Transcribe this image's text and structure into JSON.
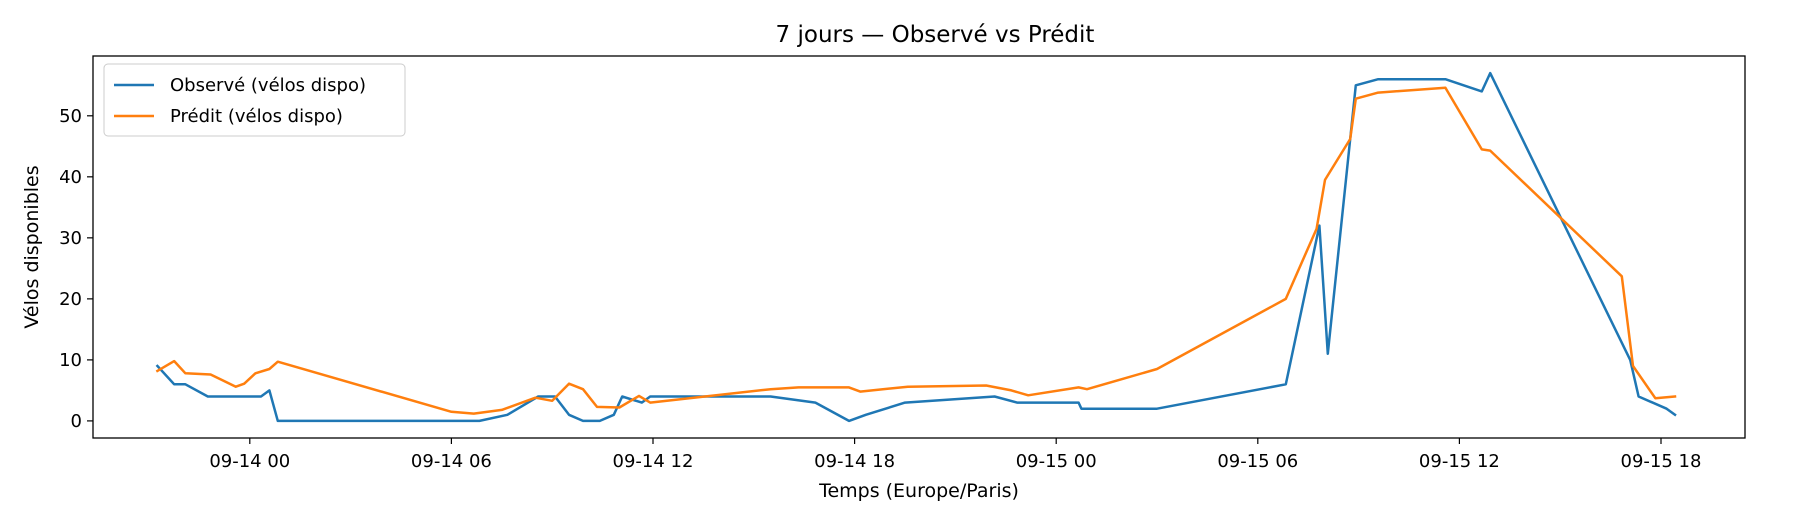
{
  "chart_data": {
    "type": "line",
    "title": "7 jours — Observé vs Prédit",
    "xlabel": "Temps (Europe/Paris)",
    "ylabel": "Vélos disponibles",
    "x_ticks": [
      {
        "label": "09-14 00",
        "time": "2025-09-14T00:00"
      },
      {
        "label": "09-14 06",
        "time": "2025-09-14T06:00"
      },
      {
        "label": "09-14 12",
        "time": "2025-09-14T12:00"
      },
      {
        "label": "09-14 18",
        "time": "2025-09-14T18:00"
      },
      {
        "label": "09-15 00",
        "time": "2025-09-15T00:00"
      },
      {
        "label": "09-15 06",
        "time": "2025-09-15T06:00"
      },
      {
        "label": "09-15 12",
        "time": "2025-09-15T12:00"
      },
      {
        "label": "09-15 18",
        "time": "2025-09-15T18:00"
      }
    ],
    "y_ticks": [
      0,
      10,
      20,
      30,
      40,
      50
    ],
    "xlim": [
      "2025-09-13T19:20",
      "2025-09-15T20:30"
    ],
    "ylim": [
      -2.8,
      59.8
    ],
    "grid": false,
    "legend_position": "upper left",
    "series": [
      {
        "name": "Observé (vélos dispo)",
        "color": "#1f77b4",
        "points": [
          [
            "2025-09-13T21:15",
            9
          ],
          [
            "2025-09-13T21:45",
            6
          ],
          [
            "2025-09-13T22:05",
            6
          ],
          [
            "2025-09-13T22:45",
            4
          ],
          [
            "2025-09-13T23:35",
            4
          ],
          [
            "2025-09-14T00:20",
            4
          ],
          [
            "2025-09-14T00:35",
            5
          ],
          [
            "2025-09-14T00:50",
            0
          ],
          [
            "2025-09-14T06:50",
            0
          ],
          [
            "2025-09-14T07:40",
            1
          ],
          [
            "2025-09-14T08:35",
            4
          ],
          [
            "2025-09-14T09:05",
            4
          ],
          [
            "2025-09-14T09:30",
            1
          ],
          [
            "2025-09-14T09:55",
            0
          ],
          [
            "2025-09-14T10:25",
            0
          ],
          [
            "2025-09-14T10:50",
            1
          ],
          [
            "2025-09-14T11:05",
            4
          ],
          [
            "2025-09-14T11:40",
            3
          ],
          [
            "2025-09-14T11:55",
            4
          ],
          [
            "2025-09-14T12:50",
            4
          ],
          [
            "2025-09-14T15:30",
            4
          ],
          [
            "2025-09-14T16:50",
            3
          ],
          [
            "2025-09-14T17:50",
            0
          ],
          [
            "2025-09-14T18:20",
            1
          ],
          [
            "2025-09-14T19:30",
            3
          ],
          [
            "2025-09-14T22:10",
            4
          ],
          [
            "2025-09-14T22:50",
            3
          ],
          [
            "2025-09-14T23:35",
            3
          ],
          [
            "2025-09-14T23:55",
            3
          ],
          [
            "2025-09-15T00:40",
            3
          ],
          [
            "2025-09-15T00:45",
            2
          ],
          [
            "2025-09-15T03:00",
            2
          ],
          [
            "2025-09-15T06:50",
            6
          ],
          [
            "2025-09-15T07:50",
            32
          ],
          [
            "2025-09-15T08:05",
            11
          ],
          [
            "2025-09-15T08:55",
            55
          ],
          [
            "2025-09-15T09:35",
            56
          ],
          [
            "2025-09-15T11:35",
            56
          ],
          [
            "2025-09-15T12:40",
            54
          ],
          [
            "2025-09-15T12:55",
            57
          ],
          [
            "2025-09-15T17:05",
            10
          ],
          [
            "2025-09-15T17:20",
            4
          ],
          [
            "2025-09-15T18:10",
            2
          ],
          [
            "2025-09-15T18:25",
            1
          ]
        ]
      },
      {
        "name": "Prédit (vélos dispo)",
        "color": "#ff7f0e",
        "points": [
          [
            "2025-09-13T21:15",
            8.2
          ],
          [
            "2025-09-13T21:45",
            9.8
          ],
          [
            "2025-09-13T22:05",
            7.8
          ],
          [
            "2025-09-13T22:50",
            7.6
          ],
          [
            "2025-09-13T23:35",
            5.6
          ],
          [
            "2025-09-13T23:50",
            6.1
          ],
          [
            "2025-09-14T00:10",
            7.8
          ],
          [
            "2025-09-14T00:35",
            8.5
          ],
          [
            "2025-09-14T00:50",
            9.7
          ],
          [
            "2025-09-14T06:00",
            1.5
          ],
          [
            "2025-09-14T06:40",
            1.2
          ],
          [
            "2025-09-14T07:30",
            1.8
          ],
          [
            "2025-09-14T08:30",
            3.8
          ],
          [
            "2025-09-14T09:00",
            3.3
          ],
          [
            "2025-09-14T09:30",
            6.1
          ],
          [
            "2025-09-14T09:55",
            5.2
          ],
          [
            "2025-09-14T10:20",
            2.3
          ],
          [
            "2025-09-14T11:00",
            2.2
          ],
          [
            "2025-09-14T11:35",
            4.1
          ],
          [
            "2025-09-14T11:55",
            3.0
          ],
          [
            "2025-09-14T15:30",
            5.2
          ],
          [
            "2025-09-14T16:20",
            5.5
          ],
          [
            "2025-09-14T17:50",
            5.5
          ],
          [
            "2025-09-14T18:10",
            4.8
          ],
          [
            "2025-09-14T19:35",
            5.6
          ],
          [
            "2025-09-14T21:55",
            5.8
          ],
          [
            "2025-09-14T22:40",
            5.0
          ],
          [
            "2025-09-14T23:10",
            4.2
          ],
          [
            "2025-09-15T00:40",
            5.5
          ],
          [
            "2025-09-15T00:55",
            5.2
          ],
          [
            "2025-09-15T03:00",
            8.5
          ],
          [
            "2025-09-15T06:50",
            20.0
          ],
          [
            "2025-09-15T07:45",
            31.5
          ],
          [
            "2025-09-15T08:00",
            39.5
          ],
          [
            "2025-09-15T08:45",
            46.2
          ],
          [
            "2025-09-15T08:55",
            52.8
          ],
          [
            "2025-09-15T09:35",
            53.8
          ],
          [
            "2025-09-15T11:35",
            54.6
          ],
          [
            "2025-09-15T12:40",
            44.5
          ],
          [
            "2025-09-15T12:55",
            44.3
          ],
          [
            "2025-09-15T16:50",
            23.7
          ],
          [
            "2025-09-15T17:10",
            9.0
          ],
          [
            "2025-09-15T17:50",
            3.7
          ],
          [
            "2025-09-15T18:25",
            4.0
          ]
        ]
      }
    ]
  }
}
